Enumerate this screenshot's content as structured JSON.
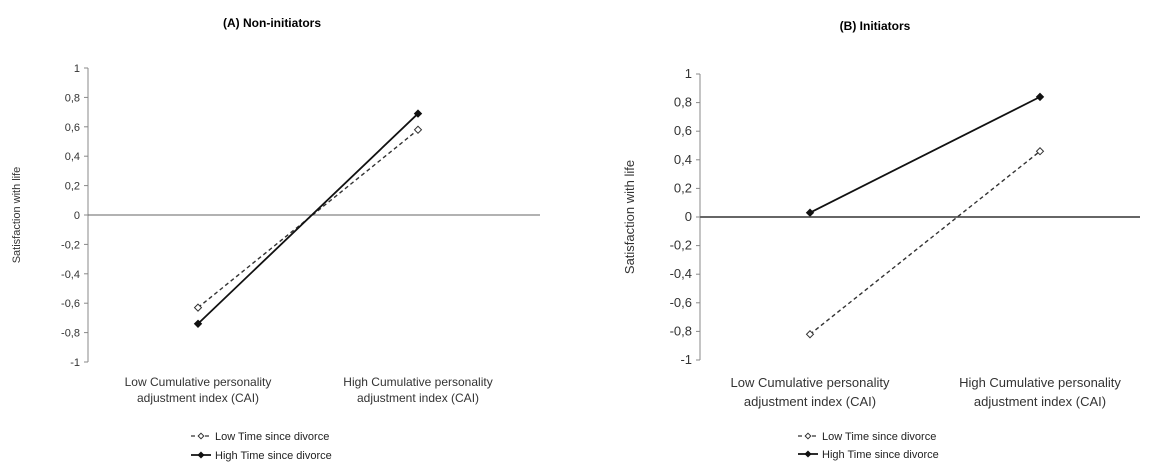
{
  "chart_data": [
    {
      "type": "line",
      "title": "(A) Non-initiators",
      "ylabel": "Satisfaction with life",
      "xlabel": "",
      "categories": [
        "Low Cumulative personality adjustment index (CAI)",
        "High Cumulative personality adjustment index (CAI)"
      ],
      "category_lines": [
        [
          "Low Cumulative personality",
          "adjustment index (CAI)"
        ],
        [
          "High Cumulative personality",
          "adjustment index (CAI)"
        ]
      ],
      "ylim": [
        -1,
        1
      ],
      "yticks": [
        1,
        0.8,
        0.6,
        0.4,
        0.2,
        0,
        -0.2,
        -0.4,
        -0.6,
        -0.8,
        -1
      ],
      "ytick_labels": [
        "1",
        "0,8",
        "0,6",
        "0,4",
        "0,2",
        "0",
        "-0,2",
        "-0,4",
        "-0,6",
        "-0,8",
        "-1"
      ],
      "grid": false,
      "legend_position": "bottom",
      "series": [
        {
          "name": "Low Time since divorce",
          "values": [
            -0.63,
            0.58
          ],
          "style": "dashed",
          "marker": "open-diamond",
          "color": "#333333"
        },
        {
          "name": "High Time since divorce",
          "values": [
            -0.74,
            0.69
          ],
          "style": "solid",
          "marker": "filled-diamond",
          "color": "#111111"
        }
      ]
    },
    {
      "type": "line",
      "title": "(B) Initiators",
      "ylabel": "Satisfaction with life",
      "xlabel": "",
      "categories": [
        "Low Cumulative personality adjustment index (CAI)",
        "High Cumulative personality adjustment index (CAI)"
      ],
      "category_lines": [
        [
          "Low Cumulative personality",
          "adjustment index (CAI)"
        ],
        [
          "High Cumulative personality",
          "adjustment index (CAI)"
        ]
      ],
      "ylim": [
        -1,
        1
      ],
      "yticks": [
        1,
        0.8,
        0.6,
        0.4,
        0.2,
        0,
        -0.2,
        -0.4,
        -0.6,
        -0.8,
        -1
      ],
      "ytick_labels": [
        "1",
        "0,8",
        "0,6",
        "0,4",
        "0,2",
        "0",
        "-0,2",
        "-0,4",
        "-0,6",
        "-0,8",
        "-1"
      ],
      "grid": false,
      "legend_position": "bottom",
      "series": [
        {
          "name": "Low Time since divorce",
          "values": [
            -0.82,
            0.46
          ],
          "style": "dashed",
          "marker": "open-diamond",
          "color": "#333333"
        },
        {
          "name": "High Time since divorce",
          "values": [
            0.03,
            0.84
          ],
          "style": "solid",
          "marker": "filled-diamond",
          "color": "#111111"
        }
      ]
    }
  ]
}
